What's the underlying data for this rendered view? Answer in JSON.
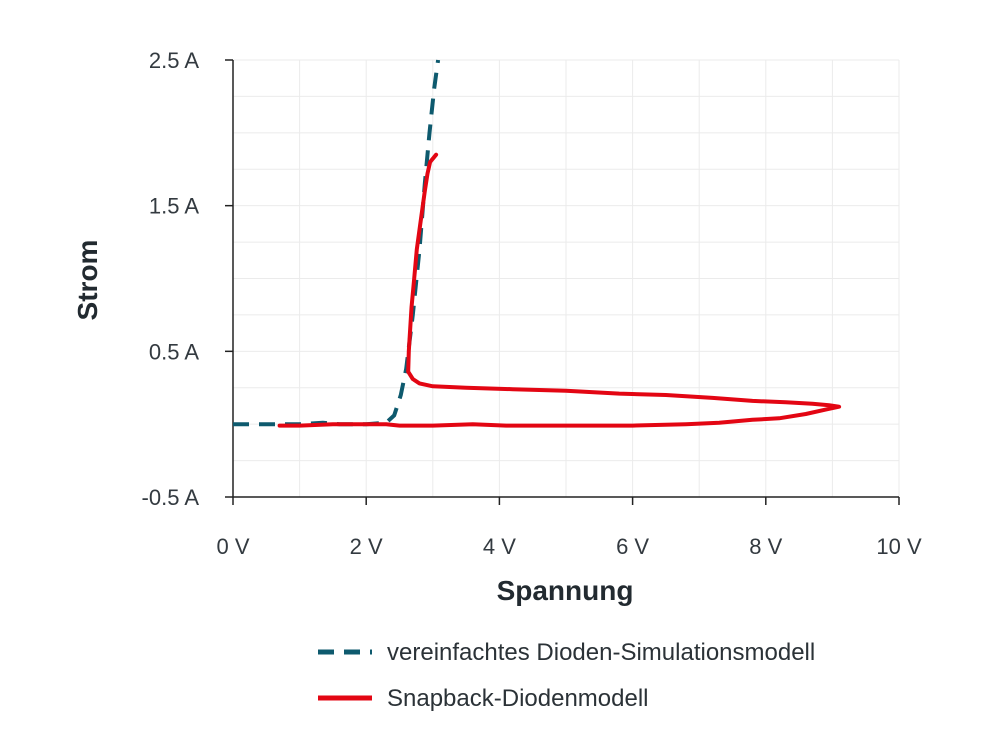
{
  "chart_data": {
    "type": "line",
    "title": "",
    "xlabel": "Spannung",
    "ylabel": "Strom",
    "xlim": [
      0,
      10
    ],
    "ylim": [
      -0.5,
      2.5
    ],
    "x_ticks": [
      {
        "value": 0,
        "label": "0 V"
      },
      {
        "value": 2,
        "label": "2 V"
      },
      {
        "value": 4,
        "label": "4 V"
      },
      {
        "value": 6,
        "label": "6 V"
      },
      {
        "value": 8,
        "label": "8 V"
      },
      {
        "value": 10,
        "label": "10 V"
      }
    ],
    "y_ticks": [
      {
        "value": -0.5,
        "label": "-0.5 A"
      },
      {
        "value": 0.5,
        "label": "0.5 A"
      },
      {
        "value": 1.5,
        "label": "1.5 A"
      },
      {
        "value": 2.5,
        "label": "2.5 A"
      }
    ],
    "grid": true,
    "legend_position": "bottom-right",
    "series": [
      {
        "name": "vereinfachtes Dioden-Simulationsmodell",
        "color": "#0e5a6e",
        "dash": "dashed",
        "points": [
          [
            0.0,
            0.0
          ],
          [
            1.0,
            0.0
          ],
          [
            1.35,
            0.01
          ],
          [
            1.6,
            0.0
          ],
          [
            2.0,
            0.0
          ],
          [
            2.3,
            0.01
          ],
          [
            2.42,
            0.06
          ],
          [
            2.52,
            0.2
          ],
          [
            2.6,
            0.38
          ],
          [
            2.7,
            0.75
          ],
          [
            2.8,
            1.2
          ],
          [
            2.88,
            1.65
          ],
          [
            2.95,
            2.0
          ],
          [
            3.02,
            2.3
          ],
          [
            3.08,
            2.5
          ]
        ]
      },
      {
        "name": "Snapback-Diodenmodell",
        "color": "#e30613",
        "dash": "solid",
        "points": [
          [
            0.7,
            -0.01
          ],
          [
            1.0,
            -0.01
          ],
          [
            1.5,
            0.0
          ],
          [
            2.0,
            0.0
          ],
          [
            2.3,
            0.0
          ],
          [
            2.5,
            -0.01
          ],
          [
            3.0,
            -0.01
          ],
          [
            3.6,
            0.0
          ],
          [
            4.1,
            -0.01
          ],
          [
            4.4,
            -0.01
          ],
          [
            5.0,
            -0.01
          ],
          [
            6.0,
            -0.01
          ],
          [
            6.8,
            0.0
          ],
          [
            7.3,
            0.01
          ],
          [
            7.8,
            0.03
          ],
          [
            8.2,
            0.04
          ],
          [
            8.6,
            0.07
          ],
          [
            8.9,
            0.1
          ],
          [
            9.1,
            0.12
          ],
          [
            8.95,
            0.13
          ],
          [
            8.7,
            0.14
          ],
          [
            8.3,
            0.15
          ],
          [
            7.8,
            0.16
          ],
          [
            7.2,
            0.18
          ],
          [
            6.5,
            0.2
          ],
          [
            5.8,
            0.21
          ],
          [
            5.0,
            0.23
          ],
          [
            4.2,
            0.24
          ],
          [
            3.5,
            0.25
          ],
          [
            3.0,
            0.26
          ],
          [
            2.8,
            0.28
          ],
          [
            2.7,
            0.31
          ],
          [
            2.63,
            0.36
          ],
          [
            2.64,
            0.5
          ],
          [
            2.68,
            0.8
          ],
          [
            2.72,
            1.0
          ],
          [
            2.76,
            1.2
          ],
          [
            2.82,
            1.4
          ],
          [
            2.88,
            1.6
          ],
          [
            2.92,
            1.72
          ],
          [
            2.96,
            1.8
          ],
          [
            3.05,
            1.85
          ]
        ]
      }
    ]
  }
}
